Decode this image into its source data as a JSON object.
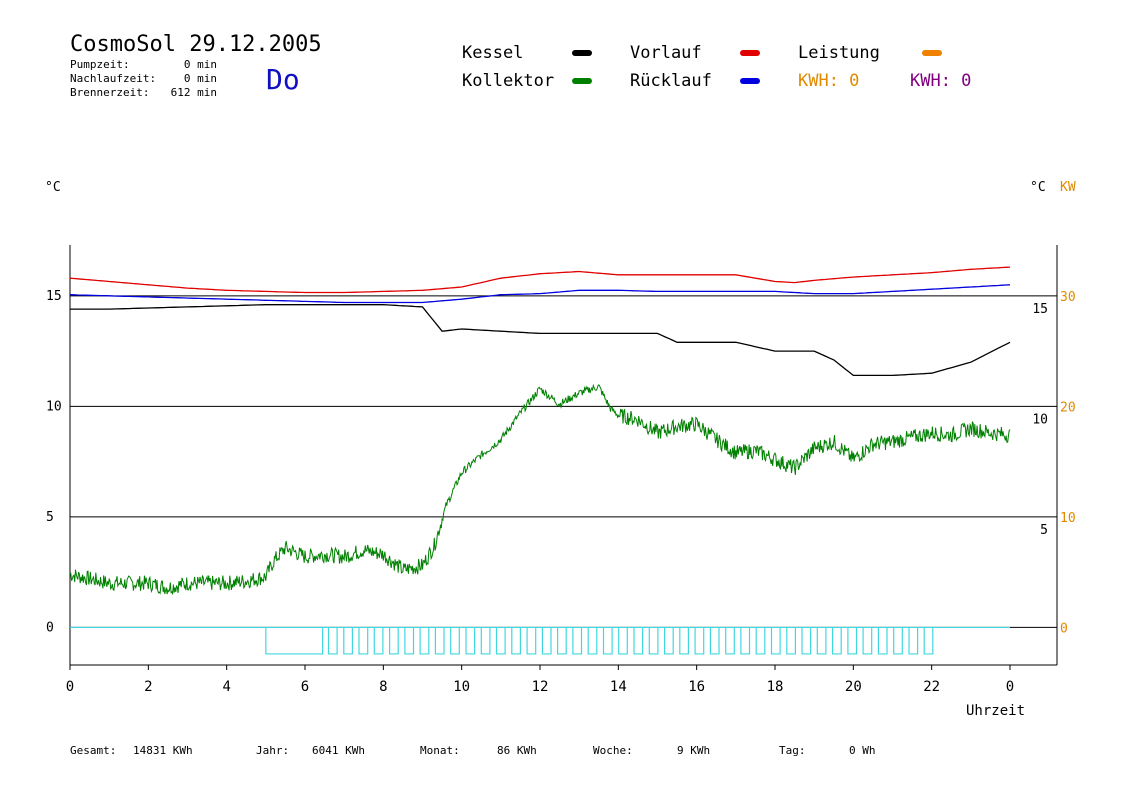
{
  "header": {
    "title": "CosmoSol 29.12.2005",
    "day": "Do",
    "stats": [
      {
        "label": "Pumpzeit:",
        "value": "0 min"
      },
      {
        "label": "Nachlaufzeit:",
        "value": "0 min"
      },
      {
        "label": "Brennerzeit:",
        "value": "612 min"
      }
    ]
  },
  "legend": {
    "items": [
      {
        "label": "Kessel",
        "color": "#000000"
      },
      {
        "label": "Vorlauf",
        "color": "#e00000"
      },
      {
        "label": "Leistung",
        "color": "#f08000"
      },
      {
        "label": "Kollektor",
        "color": "#008000"
      },
      {
        "label": "Rücklauf",
        "color": "#0000e0"
      }
    ],
    "kwh": [
      {
        "label": "KWH: 0",
        "color": "#e08a00"
      },
      {
        "label": "KWH: 0",
        "color": "#800080"
      }
    ]
  },
  "footer": {
    "items": [
      {
        "label": "Gesamt:",
        "value": "14831 KWh"
      },
      {
        "label": "Jahr:",
        "value": "6041 KWh"
      },
      {
        "label": "Monat:",
        "value": "86 KWh"
      },
      {
        "label": "Woche:",
        "value": "9 KWh"
      },
      {
        "label": "Tag:",
        "value": "0 Wh"
      }
    ]
  },
  "chart_data": {
    "type": "line",
    "xlabel": "Uhrzeit",
    "x_ticks": [
      "0",
      "2",
      "4",
      "6",
      "8",
      "10",
      "12",
      "14",
      "16",
      "18",
      "20",
      "22",
      "0"
    ],
    "xlim": [
      0,
      24
    ],
    "y_left": {
      "label": "°C",
      "ticks": [
        "0",
        "5",
        "10",
        "15"
      ],
      "ylim": [
        -1.7,
        17.3
      ]
    },
    "y_right_inner": {
      "label": "°C",
      "ticks": [
        "5",
        "10",
        "15"
      ]
    },
    "y_right_outer": {
      "label": "KW",
      "color": "#e08a00",
      "ticks": [
        "0",
        "10",
        "20",
        "30"
      ]
    },
    "grid": true,
    "series": [
      {
        "name": "Vorlauf",
        "color": "#e00000",
        "x": [
          0,
          1,
          2,
          3,
          4,
          5,
          6,
          7,
          8,
          9,
          10,
          11,
          12,
          13,
          14,
          15,
          16,
          17,
          18,
          18.5,
          19,
          20,
          21,
          22,
          23,
          24
        ],
        "y": [
          15.8,
          15.65,
          15.5,
          15.35,
          15.25,
          15.2,
          15.15,
          15.15,
          15.2,
          15.25,
          15.4,
          15.8,
          16.0,
          16.1,
          15.95,
          15.95,
          15.95,
          15.95,
          15.65,
          15.6,
          15.7,
          15.85,
          15.95,
          16.05,
          16.2,
          16.3
        ]
      },
      {
        "name": "Rücklauf",
        "color": "#0000e0",
        "x": [
          0,
          1,
          2,
          3,
          4,
          5,
          6,
          7,
          8,
          9,
          10,
          11,
          12,
          13,
          14,
          15,
          16,
          17,
          18,
          19,
          20,
          21,
          22,
          23,
          24
        ],
        "y": [
          15.05,
          15.0,
          14.95,
          14.9,
          14.85,
          14.8,
          14.75,
          14.7,
          14.7,
          14.7,
          14.85,
          15.05,
          15.1,
          15.25,
          15.25,
          15.2,
          15.2,
          15.2,
          15.2,
          15.1,
          15.1,
          15.2,
          15.3,
          15.4,
          15.5
        ]
      },
      {
        "name": "Kessel",
        "color": "#000000",
        "x": [
          0,
          1,
          2,
          3,
          4,
          5,
          6,
          7,
          8,
          9,
          9.5,
          10,
          11,
          12,
          13,
          14,
          15,
          15.5,
          16,
          17,
          17.5,
          18,
          19,
          19.5,
          20,
          21,
          22,
          23,
          24
        ],
        "y": [
          14.4,
          14.4,
          14.45,
          14.5,
          14.55,
          14.6,
          14.6,
          14.6,
          14.6,
          14.5,
          13.4,
          13.5,
          13.4,
          13.3,
          13.3,
          13.3,
          13.3,
          12.9,
          12.9,
          12.9,
          12.7,
          12.5,
          12.5,
          12.1,
          11.4,
          11.4,
          11.5,
          12.0,
          12.9
        ]
      },
      {
        "name": "Kollektor",
        "color": "#008000",
        "x": [
          0,
          1,
          2,
          2.5,
          3,
          4,
          4.5,
          5,
          5.2,
          5.5,
          6,
          6.5,
          7,
          7.5,
          8,
          8.5,
          9,
          9.3,
          9.6,
          10,
          10.5,
          11,
          11.5,
          12,
          12.5,
          13,
          13.5,
          13.8,
          14,
          14.5,
          15,
          15.5,
          16,
          16.5,
          17,
          17.5,
          18,
          18.5,
          19,
          19.5,
          20,
          20.5,
          21,
          21.5,
          22,
          22.5,
          23,
          23.5,
          24
        ],
        "y": [
          2.4,
          2.0,
          2.0,
          1.8,
          2.0,
          2.0,
          2.1,
          2.3,
          3.0,
          3.6,
          3.2,
          3.3,
          3.2,
          3.5,
          3.3,
          2.6,
          2.8,
          3.7,
          5.5,
          7.0,
          7.8,
          8.5,
          9.7,
          10.8,
          10.1,
          10.6,
          10.9,
          9.9,
          9.6,
          9.4,
          8.8,
          9.1,
          9.2,
          8.5,
          7.9,
          8.0,
          7.6,
          7.2,
          8.1,
          8.4,
          7.6,
          8.3,
          8.4,
          8.6,
          8.8,
          8.7,
          9.0,
          8.8,
          8.7
        ]
      }
    ],
    "pump_line": {
      "color": "#40d8e0",
      "y": 0,
      "pulses_start_hour": 5,
      "pulses_end_hour": 22,
      "pulse_depth": -1.2
    }
  }
}
